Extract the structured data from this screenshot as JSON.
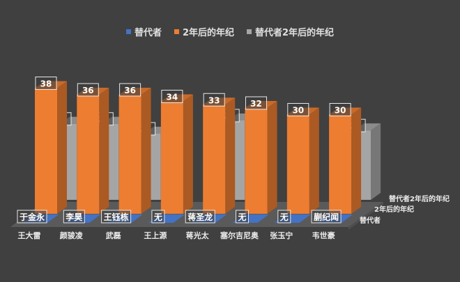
{
  "chart_data": {
    "type": "bar",
    "subtype": "3d-column",
    "categories": [
      "王大雷",
      "颜骏凌",
      "武磊",
      "王上源",
      "蒋光太",
      "塞尔吉尼奥",
      "张玉宁",
      "韦世豪"
    ],
    "series": [
      {
        "name": "替代者",
        "color": "#4472c4",
        "labels": [
          "于金永",
          "李昊",
          "王钰栋",
          "无",
          "蒋圣龙",
          "无",
          "无",
          "蒯纪闻"
        ]
      },
      {
        "name": "2年后的年纪",
        "color": "#ed7d31",
        "values": [
          38,
          36,
          36,
          34,
          33,
          32,
          30,
          30
        ]
      },
      {
        "name": "替代者2年后的年纪",
        "color": "#a5a5a5",
        "values": [
          23,
          23,
          20,
          null,
          24,
          null,
          null,
          21
        ]
      }
    ],
    "depth_axis_labels": [
      "替代者2年后的年纪",
      "2年后的年纪",
      "替代者"
    ],
    "legend_position": "top",
    "grid": false,
    "background": "#404040"
  }
}
